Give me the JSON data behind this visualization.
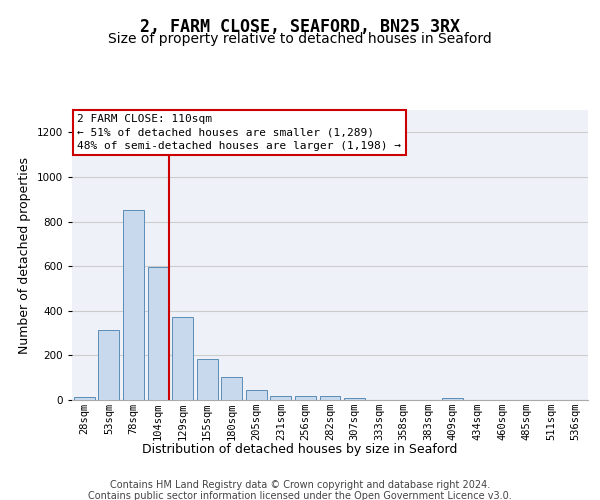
{
  "title": "2, FARM CLOSE, SEAFORD, BN25 3RX",
  "subtitle": "Size of property relative to detached houses in Seaford",
  "xlabel": "Distribution of detached houses by size in Seaford",
  "ylabel": "Number of detached properties",
  "footer_line1": "Contains HM Land Registry data © Crown copyright and database right 2024.",
  "footer_line2": "Contains public sector information licensed under the Open Government Licence v3.0.",
  "categories": [
    "28sqm",
    "53sqm",
    "78sqm",
    "104sqm",
    "129sqm",
    "155sqm",
    "180sqm",
    "205sqm",
    "231sqm",
    "256sqm",
    "282sqm",
    "307sqm",
    "333sqm",
    "358sqm",
    "383sqm",
    "409sqm",
    "434sqm",
    "460sqm",
    "485sqm",
    "511sqm",
    "536sqm"
  ],
  "values": [
    15,
    315,
    850,
    595,
    370,
    185,
    105,
    45,
    20,
    18,
    18,
    10,
    0,
    0,
    0,
    10,
    0,
    0,
    0,
    0,
    0
  ],
  "bar_color": "#c9d9ed",
  "bar_edge_color": "#5b8db8",
  "red_line_index": 3,
  "annotation_line1": "2 FARM CLOSE: 110sqm",
  "annotation_line2": "← 51% of detached houses are smaller (1,289)",
  "annotation_line3": "48% of semi-detached houses are larger (1,198) →",
  "annotation_box_color": "#ffffff",
  "annotation_box_edge": "#cc0000",
  "red_line_color": "#cc0000",
  "ylim": [
    0,
    1300
  ],
  "yticks": [
    0,
    200,
    400,
    600,
    800,
    1000,
    1200
  ],
  "grid_color": "#cccccc",
  "bg_color": "#eef2f8",
  "title_fontsize": 12,
  "subtitle_fontsize": 10,
  "axis_label_fontsize": 9,
  "tick_fontsize": 7.5,
  "footer_fontsize": 7,
  "annotation_fontsize": 8
}
